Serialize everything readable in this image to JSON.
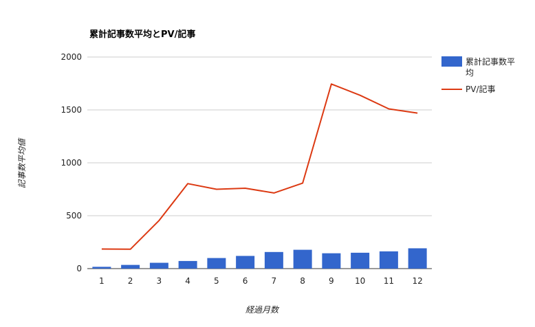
{
  "chart_data": {
    "type": "bar",
    "title": "累計記事数平均とPV/記事",
    "xlabel": "経過月数",
    "ylabel": "記事数平均値",
    "categories": [
      "1",
      "2",
      "3",
      "4",
      "5",
      "6",
      "7",
      "8",
      "9",
      "10",
      "11",
      "12"
    ],
    "ylim": [
      0,
      2000
    ],
    "yticks": [
      "0",
      "500",
      "1000",
      "1500",
      "2000"
    ],
    "grid": true,
    "legend_position": "right",
    "series": [
      {
        "name": "累計記事数平均",
        "type": "bar",
        "color": "#3366cc",
        "values": [
          17,
          35,
          55,
          72,
          100,
          120,
          157,
          178,
          145,
          150,
          163,
          192
        ]
      },
      {
        "name": "PV/記事",
        "type": "line",
        "color": "#dc3912",
        "values": [
          185,
          183,
          455,
          803,
          750,
          760,
          715,
          808,
          1745,
          1638,
          1510,
          1470
        ]
      }
    ],
    "legend": {
      "bar_label_line1": "累計記事数平",
      "bar_label_line2": "均",
      "line_label": "PV/記事"
    }
  }
}
